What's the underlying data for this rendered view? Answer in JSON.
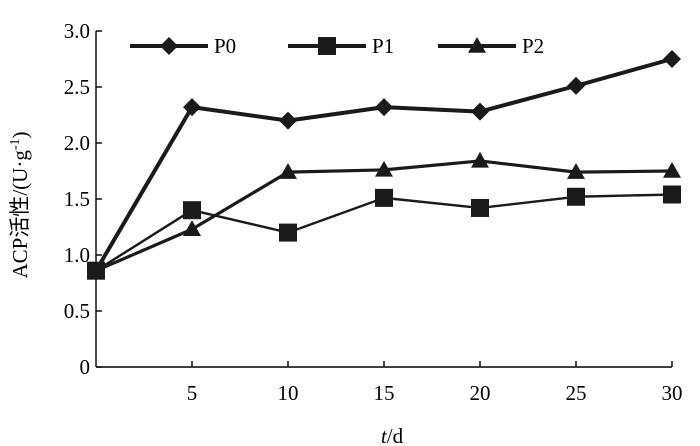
{
  "chart_data": {
    "type": "line",
    "xlabel_italic": "t",
    "xlabel_unit": "/d",
    "ylabel": "ACP活性/(U·g",
    "ylabel_sup": "-1",
    "ylabel_end": ")",
    "xlim": [
      0,
      30
    ],
    "ylim": [
      0,
      3.0
    ],
    "x_ticks": [
      5,
      10,
      15,
      20,
      25,
      30
    ],
    "y_ticks": [
      "0",
      "0.5",
      "1.0",
      "1.5",
      "2.0",
      "2.5",
      "3.0"
    ],
    "y_tick_values": [
      0,
      0.5,
      1.0,
      1.5,
      2.0,
      2.5,
      3.0
    ],
    "x": [
      0,
      5,
      10,
      15,
      20,
      25,
      30
    ],
    "series": [
      {
        "name": "P0",
        "marker": "diamond",
        "values": [
          0.86,
          2.32,
          2.2,
          2.32,
          2.28,
          2.51,
          2.75
        ]
      },
      {
        "name": "P1",
        "marker": "square",
        "values": [
          0.86,
          1.4,
          1.2,
          1.51,
          1.42,
          1.52,
          1.54
        ]
      },
      {
        "name": "P2",
        "marker": "triangle",
        "values": [
          0.86,
          1.23,
          1.74,
          1.76,
          1.84,
          1.74,
          1.75
        ]
      }
    ],
    "legend_position": "top",
    "grid": false,
    "line_color": "#1a1a1a"
  }
}
